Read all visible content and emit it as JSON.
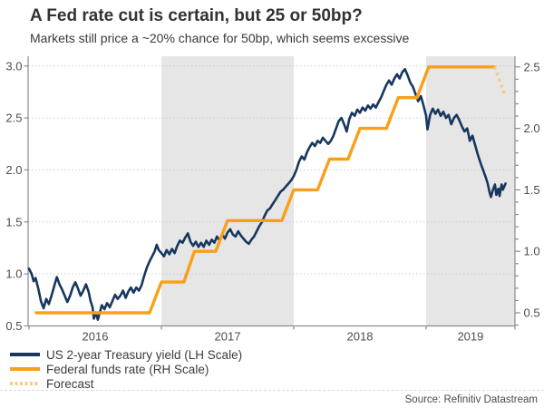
{
  "header": {
    "title": "A Fed rate cut is certain, but 25 or 50bp?",
    "subtitle": "Markets still price a ~20% chance for 50bp, which seems excessive"
  },
  "source": "Source: Refinitiv Datastream",
  "colors": {
    "navy": "#17375E",
    "orange": "#F8A01A",
    "forecast": "#F9C97E",
    "band": "#E6E6E6",
    "grid": "#C9C9C9",
    "axis": "#8C8C8C",
    "axis_text": "#4d4d4d",
    "title_text": "#333333"
  },
  "legend": [
    {
      "label": "US 2-year Treasury yield (LH Scale)",
      "swatch": "solid-navy"
    },
    {
      "label": "Federal funds rate (RH Scale)",
      "swatch": "solid-orange"
    },
    {
      "label": "Forecast",
      "swatch": "dotted"
    }
  ],
  "chart_data": {
    "type": "line",
    "title": "A Fed rate cut is certain, but 25 or 50bp?",
    "x_axis": {
      "unit": "years since Jan 2016",
      "range": [
        0,
        3.671
      ],
      "labels": [
        "2016",
        "2017",
        "2018",
        "2019"
      ],
      "label_positions": [
        0.5,
        1.5,
        2.5,
        3.335
      ],
      "tick_positions": [
        0,
        1,
        2,
        3,
        3.671
      ]
    },
    "left_axis": {
      "ticks": [
        0.5,
        1.0,
        1.5,
        2.0,
        2.5,
        3.0
      ],
      "range": [
        0.5,
        3.1
      ],
      "series": "US 2-year Treasury yield"
    },
    "right_axis": {
      "ticks": [
        0.5,
        1.0,
        1.5,
        2.0,
        2.5
      ],
      "minor_step": 0.1,
      "range": [
        0.4,
        2.6
      ],
      "series": "Federal funds rate"
    },
    "grid": "horizontal-dotted",
    "legend_position": "bottom-left",
    "shaded_year_bands": [
      [
        1.0,
        2.0
      ],
      [
        3.0,
        3.671
      ]
    ],
    "series": [
      {
        "id": "us-2y-treasury-yield",
        "name": "US 2-year Treasury yield (LH Scale)",
        "axis": "left",
        "style": "solid",
        "color": "#17375E",
        "width": 2.6,
        "points": [
          [
            0.0,
            1.05
          ],
          [
            0.02,
            1.0
          ],
          [
            0.035,
            0.93
          ],
          [
            0.05,
            0.96
          ],
          [
            0.07,
            0.86
          ],
          [
            0.09,
            0.74
          ],
          [
            0.11,
            0.67
          ],
          [
            0.13,
            0.76
          ],
          [
            0.15,
            0.71
          ],
          [
            0.17,
            0.79
          ],
          [
            0.19,
            0.88
          ],
          [
            0.21,
            0.97
          ],
          [
            0.23,
            0.9
          ],
          [
            0.25,
            0.85
          ],
          [
            0.27,
            0.79
          ],
          [
            0.29,
            0.73
          ],
          [
            0.31,
            0.79
          ],
          [
            0.33,
            0.87
          ],
          [
            0.35,
            0.92
          ],
          [
            0.37,
            0.86
          ],
          [
            0.39,
            0.79
          ],
          [
            0.41,
            0.84
          ],
          [
            0.43,
            0.9
          ],
          [
            0.45,
            0.83
          ],
          [
            0.465,
            0.74
          ],
          [
            0.48,
            0.68
          ],
          [
            0.49,
            0.57
          ],
          [
            0.505,
            0.63
          ],
          [
            0.52,
            0.56
          ],
          [
            0.535,
            0.63
          ],
          [
            0.55,
            0.7
          ],
          [
            0.57,
            0.66
          ],
          [
            0.59,
            0.72
          ],
          [
            0.61,
            0.68
          ],
          [
            0.63,
            0.74
          ],
          [
            0.65,
            0.8
          ],
          [
            0.67,
            0.76
          ],
          [
            0.69,
            0.79
          ],
          [
            0.71,
            0.84
          ],
          [
            0.73,
            0.77
          ],
          [
            0.75,
            0.83
          ],
          [
            0.77,
            0.87
          ],
          [
            0.79,
            0.82
          ],
          [
            0.81,
            0.87
          ],
          [
            0.83,
            0.84
          ],
          [
            0.85,
            0.89
          ],
          [
            0.87,
            0.98
          ],
          [
            0.89,
            1.06
          ],
          [
            0.91,
            1.12
          ],
          [
            0.93,
            1.17
          ],
          [
            0.95,
            1.22
          ],
          [
            0.965,
            1.28
          ],
          [
            0.98,
            1.23
          ],
          [
            1.0,
            1.2
          ],
          [
            1.02,
            1.17
          ],
          [
            1.04,
            1.23
          ],
          [
            1.06,
            1.19
          ],
          [
            1.08,
            1.24
          ],
          [
            1.1,
            1.2
          ],
          [
            1.12,
            1.27
          ],
          [
            1.14,
            1.32
          ],
          [
            1.16,
            1.3
          ],
          [
            1.18,
            1.35
          ],
          [
            1.2,
            1.39
          ],
          [
            1.22,
            1.31
          ],
          [
            1.24,
            1.27
          ],
          [
            1.26,
            1.31
          ],
          [
            1.28,
            1.26
          ],
          [
            1.3,
            1.3
          ],
          [
            1.32,
            1.26
          ],
          [
            1.34,
            1.32
          ],
          [
            1.36,
            1.28
          ],
          [
            1.38,
            1.33
          ],
          [
            1.4,
            1.3
          ],
          [
            1.42,
            1.36
          ],
          [
            1.44,
            1.32
          ],
          [
            1.46,
            1.38
          ],
          [
            1.48,
            1.34
          ],
          [
            1.5,
            1.4
          ],
          [
            1.52,
            1.43
          ],
          [
            1.54,
            1.38
          ],
          [
            1.56,
            1.36
          ],
          [
            1.58,
            1.41
          ],
          [
            1.6,
            1.37
          ],
          [
            1.62,
            1.34
          ],
          [
            1.64,
            1.31
          ],
          [
            1.66,
            1.29
          ],
          [
            1.68,
            1.33
          ],
          [
            1.7,
            1.36
          ],
          [
            1.72,
            1.41
          ],
          [
            1.74,
            1.46
          ],
          [
            1.76,
            1.5
          ],
          [
            1.78,
            1.56
          ],
          [
            1.8,
            1.61
          ],
          [
            1.82,
            1.63
          ],
          [
            1.84,
            1.67
          ],
          [
            1.86,
            1.71
          ],
          [
            1.88,
            1.75
          ],
          [
            1.9,
            1.79
          ],
          [
            1.92,
            1.81
          ],
          [
            1.94,
            1.84
          ],
          [
            1.96,
            1.87
          ],
          [
            1.98,
            1.9
          ],
          [
            2.0,
            1.94
          ],
          [
            2.02,
            2.0
          ],
          [
            2.04,
            2.08
          ],
          [
            2.06,
            2.13
          ],
          [
            2.08,
            2.1
          ],
          [
            2.1,
            2.17
          ],
          [
            2.12,
            2.22
          ],
          [
            2.14,
            2.26
          ],
          [
            2.16,
            2.23
          ],
          [
            2.18,
            2.28
          ],
          [
            2.2,
            2.26
          ],
          [
            2.22,
            2.31
          ],
          [
            2.24,
            2.28
          ],
          [
            2.26,
            2.25
          ],
          [
            2.28,
            2.28
          ],
          [
            2.3,
            2.33
          ],
          [
            2.32,
            2.4
          ],
          [
            2.34,
            2.47
          ],
          [
            2.36,
            2.5
          ],
          [
            2.38,
            2.44
          ],
          [
            2.4,
            2.37
          ],
          [
            2.42,
            2.49
          ],
          [
            2.44,
            2.55
          ],
          [
            2.46,
            2.52
          ],
          [
            2.48,
            2.58
          ],
          [
            2.5,
            2.55
          ],
          [
            2.52,
            2.6
          ],
          [
            2.54,
            2.57
          ],
          [
            2.56,
            2.62
          ],
          [
            2.58,
            2.59
          ],
          [
            2.6,
            2.63
          ],
          [
            2.62,
            2.6
          ],
          [
            2.64,
            2.65
          ],
          [
            2.66,
            2.7
          ],
          [
            2.68,
            2.76
          ],
          [
            2.7,
            2.82
          ],
          [
            2.72,
            2.86
          ],
          [
            2.74,
            2.82
          ],
          [
            2.76,
            2.88
          ],
          [
            2.78,
            2.92
          ],
          [
            2.8,
            2.88
          ],
          [
            2.82,
            2.94
          ],
          [
            2.84,
            2.97
          ],
          [
            2.86,
            2.91
          ],
          [
            2.88,
            2.84
          ],
          [
            2.9,
            2.8
          ],
          [
            2.92,
            2.73
          ],
          [
            2.94,
            2.66
          ],
          [
            2.96,
            2.71
          ],
          [
            2.98,
            2.62
          ],
          [
            3.0,
            2.52
          ],
          [
            3.01,
            2.39
          ],
          [
            3.03,
            2.53
          ],
          [
            3.05,
            2.59
          ],
          [
            3.07,
            2.54
          ],
          [
            3.09,
            2.58
          ],
          [
            3.11,
            2.52
          ],
          [
            3.13,
            2.56
          ],
          [
            3.15,
            2.5
          ],
          [
            3.17,
            2.53
          ],
          [
            3.19,
            2.44
          ],
          [
            3.21,
            2.5
          ],
          [
            3.23,
            2.53
          ],
          [
            3.25,
            2.48
          ],
          [
            3.27,
            2.42
          ],
          [
            3.29,
            2.37
          ],
          [
            3.31,
            2.4
          ],
          [
            3.33,
            2.28
          ],
          [
            3.35,
            2.33
          ],
          [
            3.37,
            2.24
          ],
          [
            3.39,
            2.15
          ],
          [
            3.41,
            2.07
          ],
          [
            3.43,
            2.0
          ],
          [
            3.45,
            1.93
          ],
          [
            3.465,
            1.87
          ],
          [
            3.48,
            1.78
          ],
          [
            3.49,
            1.74
          ],
          [
            3.505,
            1.81
          ],
          [
            3.52,
            1.86
          ],
          [
            3.53,
            1.76
          ],
          [
            3.545,
            1.82
          ],
          [
            3.555,
            1.75
          ],
          [
            3.57,
            1.86
          ],
          [
            3.58,
            1.81
          ],
          [
            3.59,
            1.84
          ],
          [
            3.6,
            1.87
          ]
        ]
      },
      {
        "id": "federal-funds-rate",
        "name": "Federal funds rate (RH Scale)",
        "axis": "right",
        "style": "solid",
        "color": "#F8A01A",
        "width": 3.4,
        "points": [
          [
            0.055,
            0.5
          ],
          [
            0.91,
            0.5
          ],
          [
            1.0,
            0.75
          ],
          [
            1.17,
            0.75
          ],
          [
            1.25,
            1.0
          ],
          [
            1.41,
            1.0
          ],
          [
            1.5,
            1.25
          ],
          [
            1.91,
            1.25
          ],
          [
            2.0,
            1.5
          ],
          [
            2.18,
            1.5
          ],
          [
            2.27,
            1.75
          ],
          [
            2.41,
            1.75
          ],
          [
            2.5,
            2.0
          ],
          [
            2.7,
            2.0
          ],
          [
            2.79,
            2.25
          ],
          [
            2.93,
            2.25
          ],
          [
            3.02,
            2.5
          ],
          [
            3.515,
            2.5
          ]
        ]
      },
      {
        "id": "forecast",
        "name": "Forecast",
        "axis": "right",
        "style": "dotted",
        "color": "#F9C97E",
        "width": 3.4,
        "points": [
          [
            3.515,
            2.5
          ],
          [
            3.6,
            2.26
          ]
        ]
      }
    ]
  }
}
